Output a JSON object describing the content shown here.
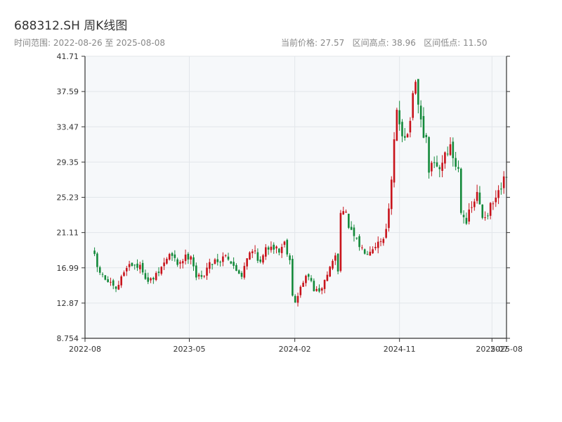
{
  "header": {
    "title": "688312.SH 周K线图",
    "date_range_label": "时间范围: 2022-08-26 至 2025-08-08",
    "stats_label": "当前价格: 27.57   区间高点: 38.96   区间低点: 11.50"
  },
  "colors": {
    "up": "#c8131b",
    "down": "#13893a",
    "plot_bg": "#f6f8fa",
    "grid": "#e2e6ea",
    "axis": "#333333"
  },
  "chart_data": {
    "type": "candlestick",
    "title": "688312.SH 周K线图",
    "ylim": [
      8.754,
      41.71
    ],
    "y_ticks": [
      "8.754",
      "12.87",
      "16.99",
      "21.11",
      "25.23",
      "29.35",
      "33.47",
      "37.59",
      "41.71"
    ],
    "x_range": [
      "2022-08-26",
      "2025-08-08"
    ],
    "x_ticks": [
      {
        "date": "2022-08-01",
        "label": "2022-08"
      },
      {
        "date": "2023-05-01",
        "label": "2023-05"
      },
      {
        "date": "2024-02-01",
        "label": "2024-02"
      },
      {
        "date": "2024-11-01",
        "label": "2024-11"
      },
      {
        "date": "2025-07-01",
        "label": "2025-07"
      },
      {
        "date": "2025-08-08",
        "label": "2025-08"
      }
    ],
    "grid": true,
    "current_price": 27.57,
    "high": 38.96,
    "low": 11.5,
    "anchors": [
      [
        "2022-08-26",
        18.2
      ],
      [
        "2022-09-02",
        17.0
      ],
      [
        "2022-09-16",
        16.0
      ],
      [
        "2022-10-07",
        15.0
      ],
      [
        "2022-10-21",
        14.3
      ],
      [
        "2022-11-04",
        15.8
      ],
      [
        "2022-11-18",
        17.3
      ],
      [
        "2022-12-09",
        17.4
      ],
      [
        "2022-12-30",
        16.8
      ],
      [
        "2023-01-13",
        15.3
      ],
      [
        "2023-02-03",
        16.0
      ],
      [
        "2023-02-24",
        17.5
      ],
      [
        "2023-03-10",
        18.6
      ],
      [
        "2023-03-31",
        17.5
      ],
      [
        "2023-04-14",
        18.0
      ],
      [
        "2023-05-05",
        18.6
      ],
      [
        "2023-05-19",
        16.0
      ],
      [
        "2023-06-02",
        15.8
      ],
      [
        "2023-06-16",
        17.0
      ],
      [
        "2023-07-07",
        18.0
      ],
      [
        "2023-07-21",
        17.8
      ],
      [
        "2023-08-04",
        18.8
      ],
      [
        "2023-08-25",
        17.0
      ],
      [
        "2023-09-15",
        16.2
      ],
      [
        "2023-09-29",
        18.4
      ],
      [
        "2023-10-20",
        19.0
      ],
      [
        "2023-11-03",
        17.5
      ],
      [
        "2023-11-17",
        19.0
      ],
      [
        "2023-12-01",
        19.8
      ],
      [
        "2023-12-22",
        19.0
      ],
      [
        "2024-01-05",
        20.0
      ],
      [
        "2024-01-19",
        18.0
      ],
      [
        "2024-01-26",
        14.0
      ],
      [
        "2024-02-02",
        12.8
      ],
      [
        "2024-02-23",
        15.5
      ],
      [
        "2024-03-08",
        16.0
      ],
      [
        "2024-03-22",
        14.5
      ],
      [
        "2024-04-05",
        14.0
      ],
      [
        "2024-04-19",
        15.5
      ],
      [
        "2024-05-03",
        17.0
      ],
      [
        "2024-05-17",
        18.5
      ],
      [
        "2024-05-24",
        16.5
      ],
      [
        "2024-05-31",
        24.0
      ],
      [
        "2024-06-14",
        23.0
      ],
      [
        "2024-06-28",
        21.0
      ],
      [
        "2024-07-12",
        20.0
      ],
      [
        "2024-07-26",
        19.2
      ],
      [
        "2024-08-09",
        19.0
      ],
      [
        "2024-08-23",
        19.5
      ],
      [
        "2024-09-06",
        20.0
      ],
      [
        "2024-09-20",
        20.5
      ],
      [
        "2024-10-04",
        23.5
      ],
      [
        "2024-10-11",
        27.0
      ],
      [
        "2024-10-18",
        31.5
      ],
      [
        "2024-10-25",
        35.0
      ],
      [
        "2024-11-08",
        33.0
      ],
      [
        "2024-11-22",
        32.5
      ],
      [
        "2024-12-06",
        36.5
      ],
      [
        "2024-12-13",
        38.0
      ],
      [
        "2024-12-27",
        34.0
      ],
      [
        "2025-01-10",
        31.5
      ],
      [
        "2025-01-17",
        28.5
      ],
      [
        "2025-01-31",
        29.0
      ],
      [
        "2025-02-14",
        28.5
      ],
      [
        "2025-02-28",
        30.5
      ],
      [
        "2025-03-14",
        31.0
      ],
      [
        "2025-03-28",
        29.0
      ],
      [
        "2025-04-04",
        28.5
      ],
      [
        "2025-04-11",
        24.0
      ],
      [
        "2025-04-25",
        22.5
      ],
      [
        "2025-05-09",
        24.0
      ],
      [
        "2025-05-23",
        25.5
      ],
      [
        "2025-06-06",
        23.0
      ],
      [
        "2025-06-20",
        23.5
      ],
      [
        "2025-07-04",
        24.5
      ],
      [
        "2025-07-18",
        25.5
      ],
      [
        "2025-08-01",
        27.0
      ],
      [
        "2025-08-08",
        27.57
      ]
    ]
  }
}
